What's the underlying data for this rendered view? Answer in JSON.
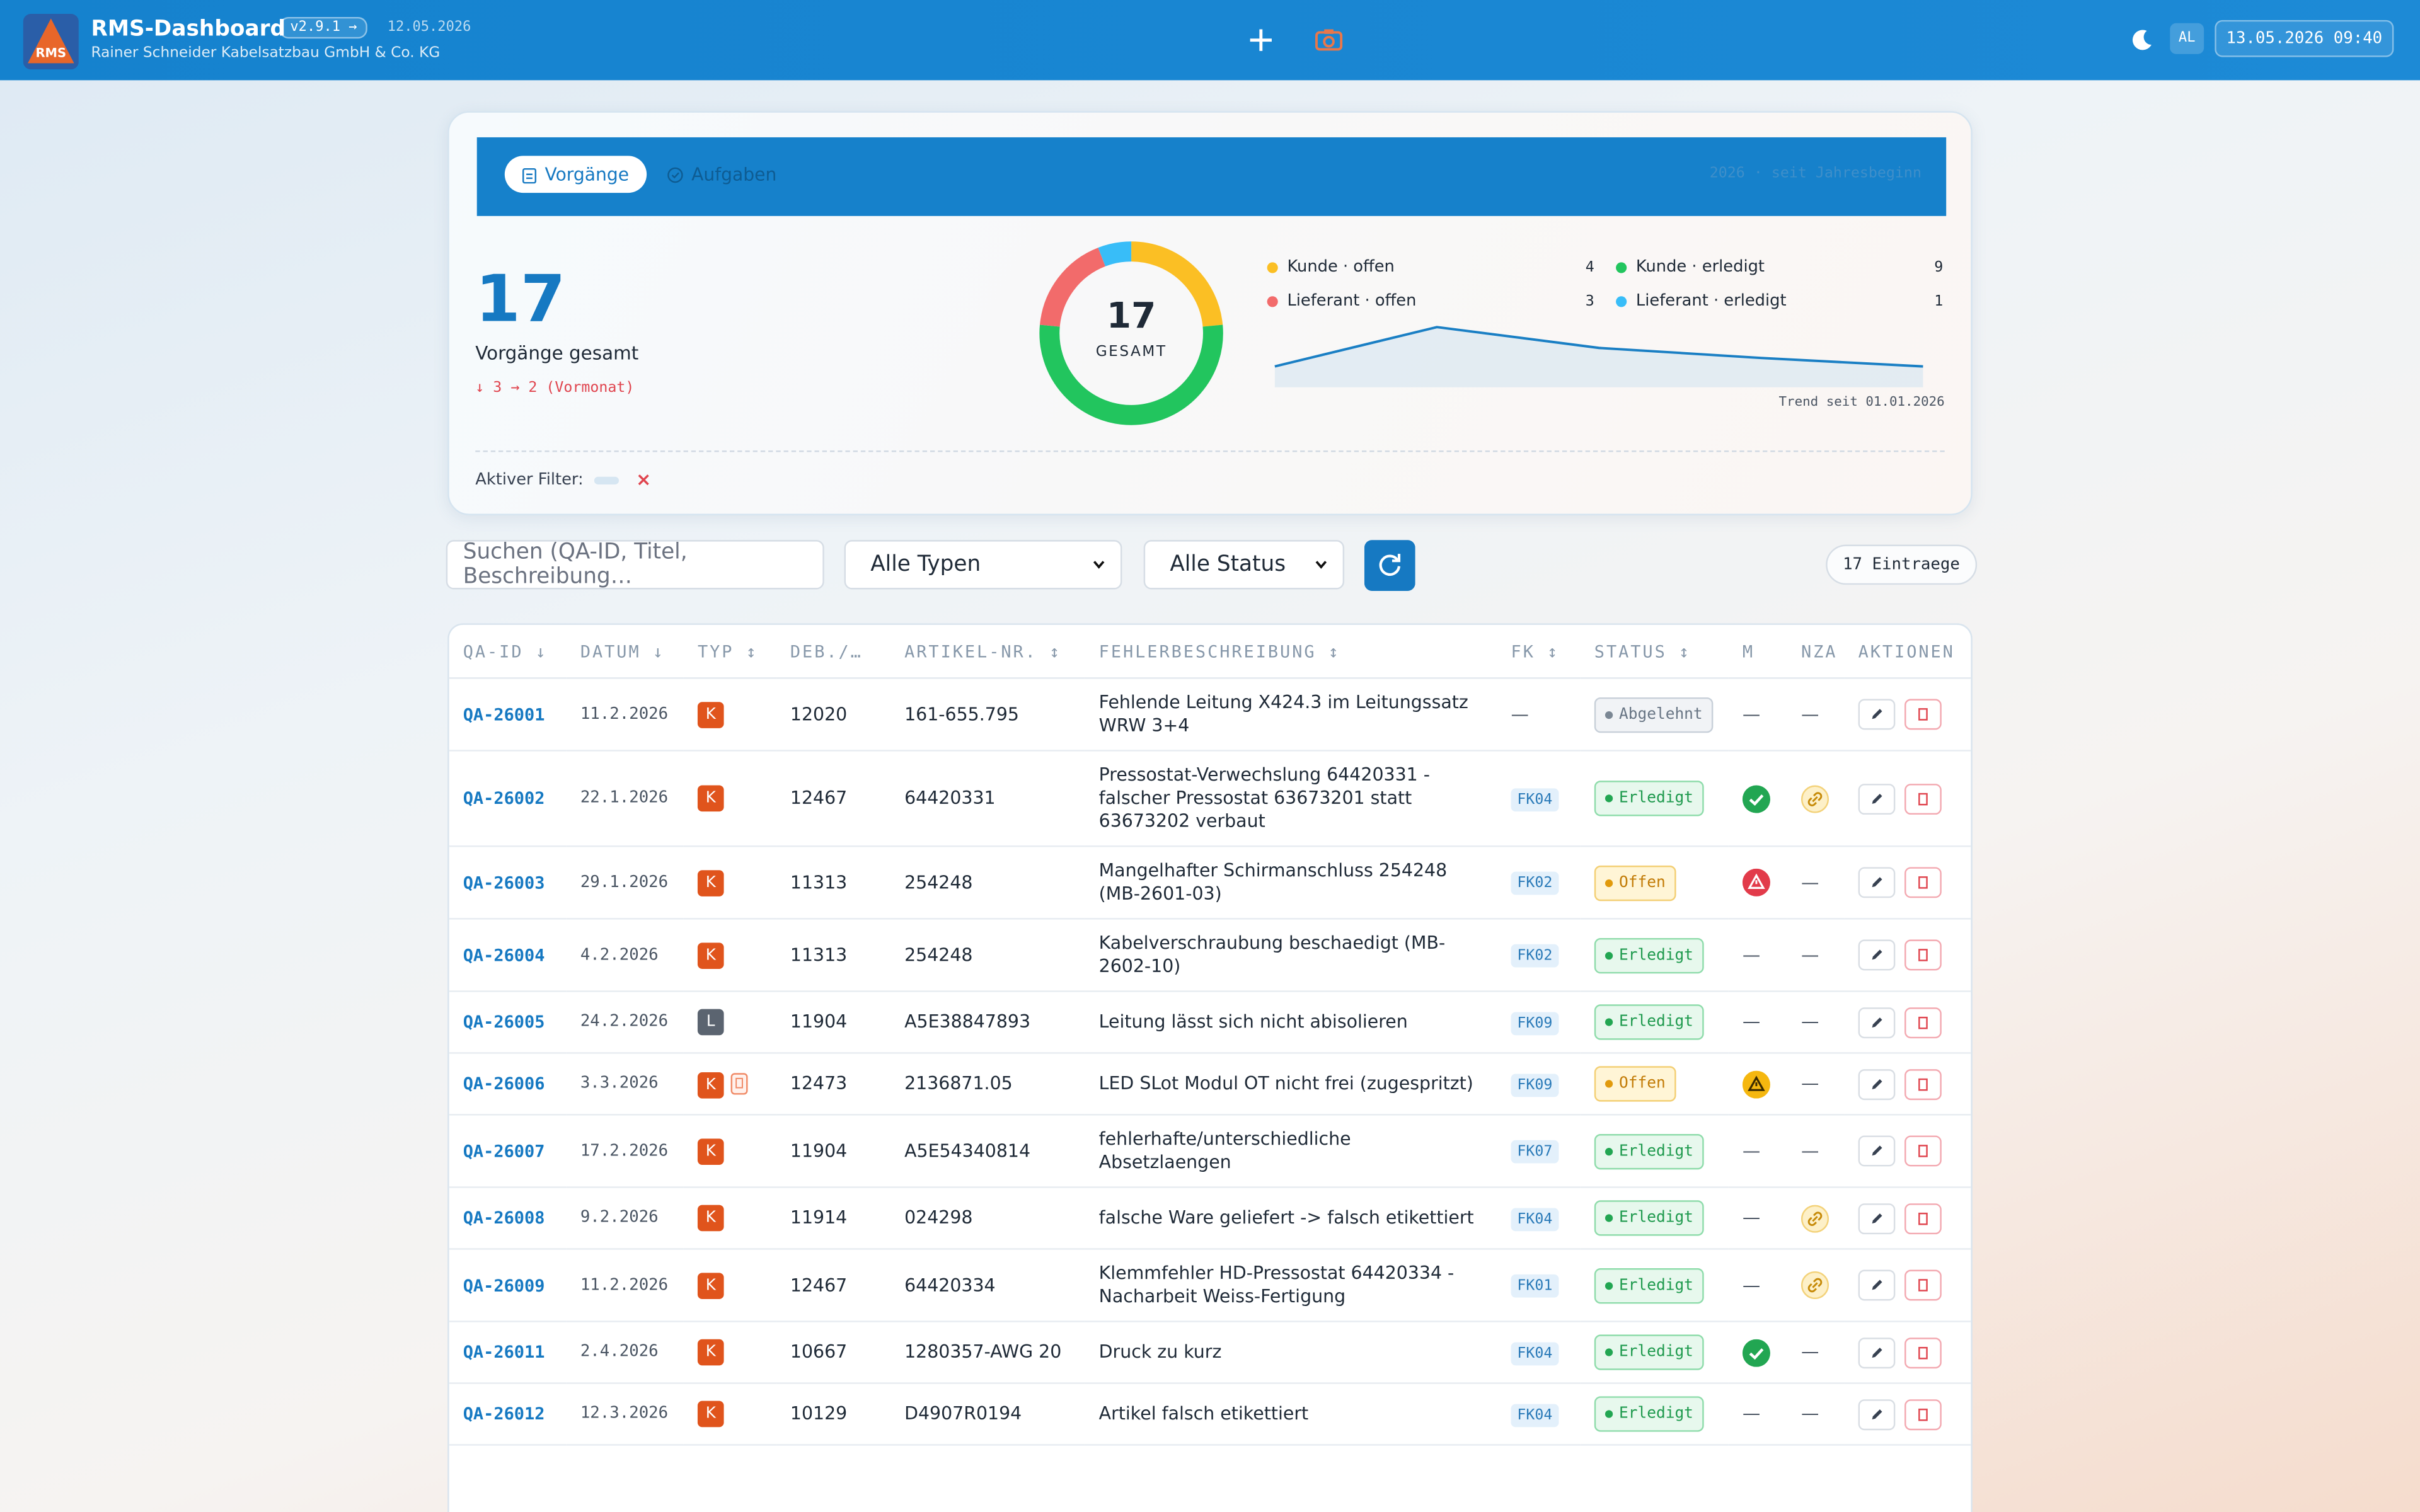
{
  "header": {
    "title": "RMS-Dashboard",
    "version": "v2.9.1 →",
    "release_date": "12.05.2026",
    "company": "Rainer Schneider Kabelsatzbau GmbH & Co. KG",
    "logo_text": "RMS",
    "user": "AL",
    "datetime": "13.05.2026 09:40"
  },
  "summary": {
    "tabs": [
      "Vorgänge",
      "Aufgaben"
    ],
    "period": "2026 · seit Jahresbeginn",
    "total": 17,
    "total_label": "Vorgänge gesamt",
    "change": "↓ 3 → 2 (Vormonat)",
    "filter_label": "Aktiver Filter:"
  },
  "chart_data": [
    {
      "type": "donut",
      "center_label": "GESAMT",
      "categories": [
        "Kunde · offen",
        "Kunde · erledigt",
        "Lieferant · offen",
        "Lieferant · erledigt"
      ],
      "values": [
        4,
        9,
        3,
        1
      ],
      "colors": [
        "#fbbf24",
        "#22c55e",
        "#f26b6b",
        "#38bdf8"
      ]
    },
    {
      "type": "line",
      "label": "Trend seit 01.01.2026",
      "values": [
        2.7,
        7.8,
        5.1,
        3.8,
        2.7
      ],
      "ylim": [
        0,
        10
      ],
      "color": "#1a7fc4"
    }
  ],
  "filters": {
    "search_placeholder": "Suchen (QA-ID, Titel, Beschreibung…",
    "type_select": "Alle Typen",
    "status_select": "Alle Status",
    "count": "17 Eintraege"
  },
  "table": {
    "columns": [
      "QA-ID ↓",
      "DATUM ↓",
      "TYP ↕",
      "DEB./…",
      "ARTIKEL-NR. ↕",
      "FEHLERBESCHREIBUNG ↕",
      "FK ↕",
      "STATUS ↕",
      "M",
      "NZA",
      "AKTIONEN"
    ],
    "rows": [
      {
        "qa_id": "QA-26001",
        "date": "11.2.2026",
        "typ": "K",
        "typ_tone": "k",
        "deb": "12020",
        "artikel": "161-655.795",
        "desc": "Fehlende Leitung X424.3 im Leitungssatz WRW 3+4",
        "fk": "—",
        "status": "Abgelehnt",
        "status_tone": "rejected",
        "m": "—",
        "nza": "—"
      },
      {
        "qa_id": "QA-26002",
        "date": "22.1.2026",
        "typ": "K",
        "typ_tone": "k",
        "deb": "12467",
        "artikel": "64420331",
        "desc": "Pressostat-Verwechslung 64420331 - falscher Pressostat 63673201 statt 63673202 verbaut",
        "fk": "FK04",
        "status": "Erledigt",
        "status_tone": "done",
        "m": "check",
        "nza": "link"
      },
      {
        "qa_id": "QA-26003",
        "date": "29.1.2026",
        "typ": "K",
        "typ_tone": "k",
        "deb": "11313",
        "artikel": "254248",
        "desc": "Mangelhafter Schirmanschluss 254248 (MB-2601-03)",
        "fk": "FK02",
        "status": "Offen",
        "status_tone": "open",
        "m": "alert",
        "nza": "—"
      },
      {
        "qa_id": "QA-26004",
        "date": "4.2.2026",
        "typ": "K",
        "typ_tone": "k",
        "deb": "11313",
        "artikel": "254248",
        "desc": "Kabelverschraubung beschaedigt (MB-2602-10)",
        "fk": "FK02",
        "status": "Erledigt",
        "status_tone": "done",
        "m": "—",
        "nza": "—"
      },
      {
        "qa_id": "QA-26005",
        "date": "24.2.2026",
        "typ": "L",
        "typ_tone": "l",
        "deb": "11904",
        "artikel": "A5E38847893",
        "desc": "Leitung lässt sich nicht abisolieren",
        "fk": "FK09",
        "status": "Erledigt",
        "status_tone": "done",
        "m": "—",
        "nza": "—"
      },
      {
        "qa_id": "QA-26006",
        "date": "3.3.2026",
        "typ": "K",
        "typ_tone": "k",
        "mobile": true,
        "deb": "12473",
        "artikel": "2136871.05",
        "desc": "LED SLot Modul OT nicht frei (zugespritzt)",
        "fk": "FK09",
        "status": "Offen",
        "status_tone": "open",
        "m": "warning",
        "nza": "—"
      },
      {
        "qa_id": "QA-26007",
        "date": "17.2.2026",
        "typ": "K",
        "typ_tone": "k",
        "deb": "11904",
        "artikel": "A5E54340814",
        "desc": "fehlerhafte/unterschiedliche Absetzlaengen",
        "fk": "FK07",
        "status": "Erledigt",
        "status_tone": "done",
        "m": "—",
        "nza": "—"
      },
      {
        "qa_id": "QA-26008",
        "date": "9.2.2026",
        "typ": "K",
        "typ_tone": "k",
        "deb": "11914",
        "artikel": "024298",
        "desc": "falsche Ware geliefert -> falsch etikettiert",
        "fk": "FK04",
        "status": "Erledigt",
        "status_tone": "done",
        "m": "—",
        "nza": "link"
      },
      {
        "qa_id": "QA-26009",
        "date": "11.2.2026",
        "typ": "K",
        "typ_tone": "k",
        "deb": "12467",
        "artikel": "64420334",
        "desc": "Klemmfehler HD-Pressostat 64420334 - Nacharbeit Weiss-Fertigung",
        "fk": "FK01",
        "status": "Erledigt",
        "status_tone": "done",
        "m": "—",
        "nza": "link"
      },
      {
        "qa_id": "QA-26011",
        "date": "2.4.2026",
        "typ": "K",
        "typ_tone": "k",
        "deb": "10667",
        "artikel": "1280357-AWG 20",
        "desc": "Druck zu kurz",
        "fk": "FK04",
        "status": "Erledigt",
        "status_tone": "done",
        "m": "check",
        "nza": "—"
      },
      {
        "qa_id": "QA-26012",
        "date": "12.3.2026",
        "typ": "K",
        "typ_tone": "k",
        "deb": "10129",
        "artikel": "D4907R0194",
        "desc": "Artikel falsch etikettiert",
        "fk": "FK04",
        "status": "Erledigt",
        "status_tone": "done",
        "m": "—",
        "nza": "—"
      }
    ]
  }
}
